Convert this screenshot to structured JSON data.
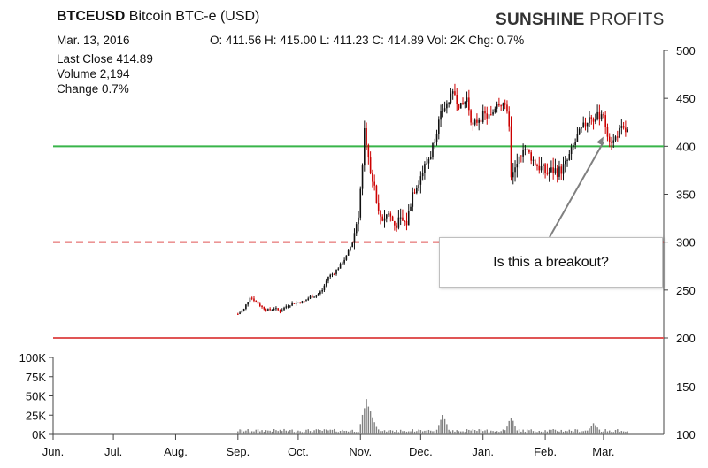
{
  "header": {
    "symbol": "BTCEUSD",
    "description": "Bitcoin BTC-e (USD)",
    "date": "Mar. 13, 2016",
    "ohlc": "O: 411.56  H: 415.00  L: 411.23  C: 414.89  Vol: 2K  Chg: 0.7%",
    "brand_strong": "SUNSHINE",
    "brand_light": " PROFITS"
  },
  "stats": {
    "last_close": "Last Close 414.89",
    "volume": "Volume 2,194",
    "change": "Change 0.7%"
  },
  "annotation": {
    "text": "Is this a breakout?"
  },
  "colors": {
    "up_candle": "#111111",
    "down_candle": "#cc0000",
    "support_line": "#e05555",
    "resistance_line": "#39b54a",
    "volume_bars": "#808080",
    "arrow": "#808080"
  },
  "chart_data": {
    "type": "candlestick",
    "title": "BTCEUSD Bitcoin BTC-e (USD)",
    "x_tick_labels": [
      "Jun.",
      "Jul.",
      "Aug.",
      "Sep.",
      "Oct.",
      "Nov.",
      "Dec.",
      "Jan.",
      "Feb.",
      "Mar."
    ],
    "price_axis": {
      "min": 200,
      "max": 500,
      "ticks": [
        200,
        250,
        300,
        350,
        400,
        450,
        500
      ]
    },
    "volume_axis_left": {
      "labels": [
        "0K",
        "25K",
        "50K",
        "75K",
        "100K"
      ],
      "max_k": 100
    },
    "volume_axis_right_labels": [
      "100",
      "150"
    ],
    "horizontal_lines": [
      {
        "name": "resistance",
        "value": 400,
        "style": "solid",
        "color": "#39b54a"
      },
      {
        "name": "support-dashed",
        "value": 300,
        "style": "dashed",
        "color": "#e05555"
      },
      {
        "name": "support-solid",
        "value": 200,
        "style": "solid",
        "color": "#e05555"
      }
    ],
    "price_series": [
      [
        "2015-09-01",
        225
      ],
      [
        "2015-09-04",
        230
      ],
      [
        "2015-09-07",
        243
      ],
      [
        "2015-09-10",
        238
      ],
      [
        "2015-09-13",
        232
      ],
      [
        "2015-09-16",
        229
      ],
      [
        "2015-09-19",
        231
      ],
      [
        "2015-09-22",
        228
      ],
      [
        "2015-09-25",
        233
      ],
      [
        "2015-09-28",
        236
      ],
      [
        "2015-10-01",
        237
      ],
      [
        "2015-10-04",
        238
      ],
      [
        "2015-10-07",
        243
      ],
      [
        "2015-10-10",
        244
      ],
      [
        "2015-10-13",
        250
      ],
      [
        "2015-10-16",
        264
      ],
      [
        "2015-10-19",
        268
      ],
      [
        "2015-10-22",
        276
      ],
      [
        "2015-10-25",
        285
      ],
      [
        "2015-10-28",
        300
      ],
      [
        "2015-10-31",
        330
      ],
      [
        "2015-11-02",
        380
      ],
      [
        "2015-11-03",
        420
      ],
      [
        "2015-11-04",
        405
      ],
      [
        "2015-11-06",
        375
      ],
      [
        "2015-11-08",
        355
      ],
      [
        "2015-11-10",
        330
      ],
      [
        "2015-11-12",
        325
      ],
      [
        "2015-11-15",
        330
      ],
      [
        "2015-11-18",
        318
      ],
      [
        "2015-11-21",
        322
      ],
      [
        "2015-11-24",
        320
      ],
      [
        "2015-11-27",
        352
      ],
      [
        "2015-11-30",
        365
      ],
      [
        "2015-12-03",
        378
      ],
      [
        "2015-12-06",
        392
      ],
      [
        "2015-12-09",
        418
      ],
      [
        "2015-12-12",
        438
      ],
      [
        "2015-12-15",
        447
      ],
      [
        "2015-12-18",
        455
      ],
      [
        "2015-12-21",
        440
      ],
      [
        "2015-12-24",
        450
      ],
      [
        "2015-12-27",
        420
      ],
      [
        "2015-12-30",
        430
      ],
      [
        "2016-01-02",
        432
      ],
      [
        "2016-01-05",
        430
      ],
      [
        "2016-01-08",
        448
      ],
      [
        "2016-01-11",
        445
      ],
      [
        "2016-01-14",
        425
      ],
      [
        "2016-01-15",
        365
      ],
      [
        "2016-01-18",
        380
      ],
      [
        "2016-01-21",
        400
      ],
      [
        "2016-01-24",
        392
      ],
      [
        "2016-01-27",
        382
      ],
      [
        "2016-01-30",
        377
      ],
      [
        "2016-02-02",
        372
      ],
      [
        "2016-02-05",
        375
      ],
      [
        "2016-02-08",
        374
      ],
      [
        "2016-02-11",
        380
      ],
      [
        "2016-02-14",
        395
      ],
      [
        "2016-02-17",
        410
      ],
      [
        "2016-02-20",
        420
      ],
      [
        "2016-02-23",
        430
      ],
      [
        "2016-02-26",
        428
      ],
      [
        "2016-02-29",
        435
      ],
      [
        "2016-03-02",
        422
      ],
      [
        "2016-03-04",
        408
      ],
      [
        "2016-03-06",
        405
      ],
      [
        "2016-03-08",
        413
      ],
      [
        "2016-03-10",
        417
      ],
      [
        "2016-03-13",
        414.89
      ]
    ],
    "volume_peaks_k": [
      [
        "2015-11-04",
        45
      ],
      [
        "2015-11-06",
        28
      ],
      [
        "2015-12-12",
        24
      ],
      [
        "2016-01-15",
        20
      ],
      [
        "2016-02-25",
        14
      ]
    ],
    "annotation": {
      "text": "Is this a breakout?",
      "arrow_to": [
        "2016-03-01",
        410
      ]
    }
  }
}
